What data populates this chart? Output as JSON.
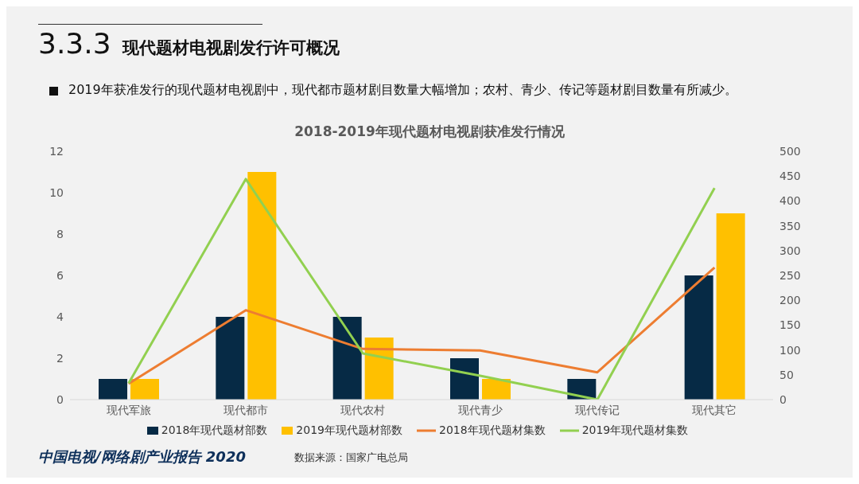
{
  "chart_data": {
    "type": "bar",
    "title": "2018-2019年现代题材电视剧获准发行情况",
    "subtitle": "2019年获准发行的现代题材电视剧中，现代都市题材剧目数量大幅增加；农村、青少、传记等题材剧目数量有所减少。",
    "annotations": [
      "3.3.3 现代题材电视剧发行许可概况",
      "中国电视/网络剧产业报告 2020",
      "数据来源：国家广电总局"
    ],
    "categories": [
      "现代军旅",
      "现代都市",
      "现代农村",
      "现代青少",
      "现代传记",
      "现代其它"
    ],
    "series": [
      {
        "name": "2018年现代题材部数",
        "color": "#062a45",
        "values": [
          1,
          4,
          4,
          2,
          1,
          6
        ]
      },
      {
        "name": "2019年现代题材部数",
        "color": "#ffc000",
        "values": [
          1,
          11,
          3,
          1,
          0,
          9
        ]
      },
      {
        "name": "2018年现代题材集数",
        "type": "line",
        "axis": "y2",
        "color": "#ed7d31",
        "values": [
          32,
          180,
          102,
          99,
          55,
          266
        ]
      },
      {
        "name": "2019年现代题材集数",
        "type": "line",
        "axis": "y2",
        "color": "#92d050",
        "values": [
          33,
          444,
          93,
          48,
          0,
          426
        ]
      }
    ],
    "ylim": [
      0,
      12
    ],
    "yticks": [
      0,
      2,
      4,
      6,
      8,
      10,
      12
    ],
    "y2lim": [
      0,
      500
    ],
    "y2ticks": [
      0,
      50,
      100,
      150,
      200,
      250,
      300,
      350,
      400,
      450,
      500
    ],
    "grid": false,
    "legend": "bottom",
    "marker": "none",
    "line_style": "solid"
  }
}
